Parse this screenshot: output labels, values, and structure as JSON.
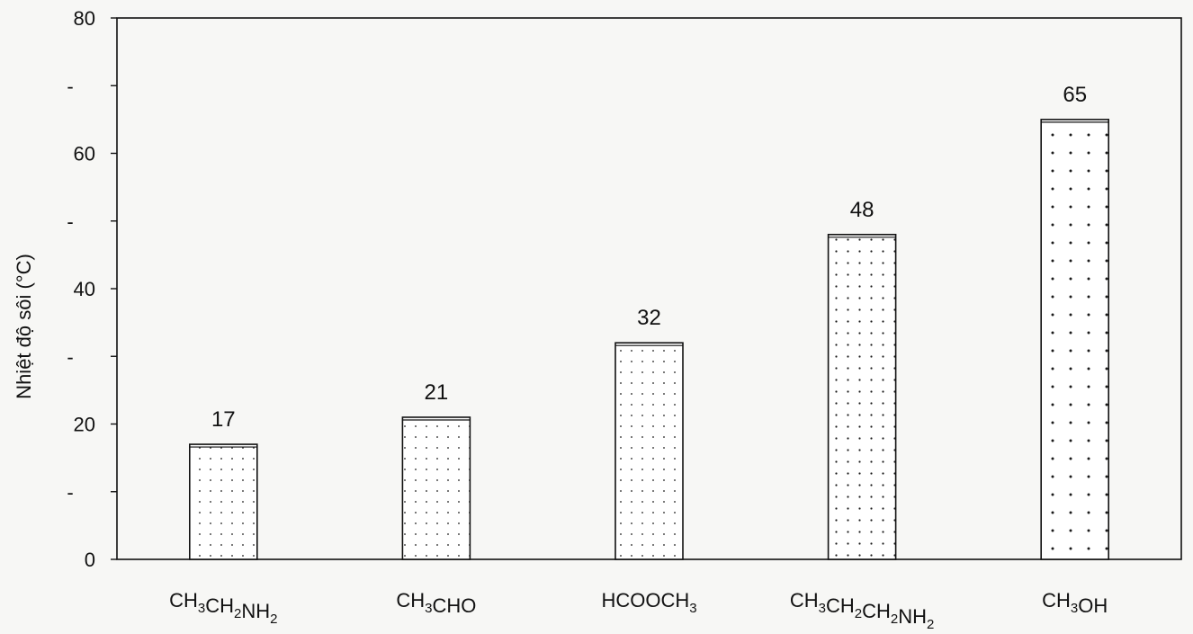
{
  "chart_data": {
    "type": "bar",
    "title": "",
    "xlabel": "",
    "ylabel": "Nhiệt độ sôi (°C)",
    "ylim": [
      0,
      80
    ],
    "yticks": [
      {
        "value": 0,
        "label": "0"
      },
      {
        "value": 10,
        "label": "-"
      },
      {
        "value": 20,
        "label": "20"
      },
      {
        "value": 30,
        "label": "-"
      },
      {
        "value": 40,
        "label": "40"
      },
      {
        "value": 50,
        "label": "-"
      },
      {
        "value": 60,
        "label": "60"
      },
      {
        "value": 70,
        "label": "-"
      },
      {
        "value": 80,
        "label": "80"
      }
    ],
    "grid": false,
    "legend": "none",
    "categories": [
      {
        "id": "ch3ch2nh2",
        "parts": [
          {
            "t": "CH",
            "s": false
          },
          {
            "t": "3",
            "s": true
          },
          {
            "t": "CH",
            "s": false
          },
          {
            "t": "2",
            "s": true
          },
          {
            "t": "NH",
            "s": false
          },
          {
            "t": "2",
            "s": true
          }
        ]
      },
      {
        "id": "ch3cho",
        "parts": [
          {
            "t": "CH",
            "s": false
          },
          {
            "t": "3",
            "s": true
          },
          {
            "t": "CHO",
            "s": false
          }
        ]
      },
      {
        "id": "hcooch3",
        "parts": [
          {
            "t": "HCOOCH",
            "s": false
          },
          {
            "t": "3",
            "s": true
          }
        ]
      },
      {
        "id": "ch3ch2ch2nh2",
        "parts": [
          {
            "t": "CH",
            "s": false
          },
          {
            "t": "3",
            "s": true
          },
          {
            "t": "CH",
            "s": false
          },
          {
            "t": "2",
            "s": true
          },
          {
            "t": "CH",
            "s": false
          },
          {
            "t": "2",
            "s": true
          },
          {
            "t": "NH",
            "s": false
          },
          {
            "t": "2",
            "s": true
          }
        ]
      },
      {
        "id": "ch3oh",
        "parts": [
          {
            "t": "CH",
            "s": false
          },
          {
            "t": "3",
            "s": true
          },
          {
            "t": "OH",
            "s": false
          }
        ]
      }
    ],
    "values": [
      17,
      21,
      32,
      48,
      65
    ],
    "data_labels": [
      "17",
      "21",
      "32",
      "48",
      "65"
    ],
    "pattern": "dotted",
    "colors": {
      "bar_fill": "#ffffff",
      "dots": "#1a1a1a",
      "stroke": "#111111",
      "axis": "#111111"
    }
  }
}
